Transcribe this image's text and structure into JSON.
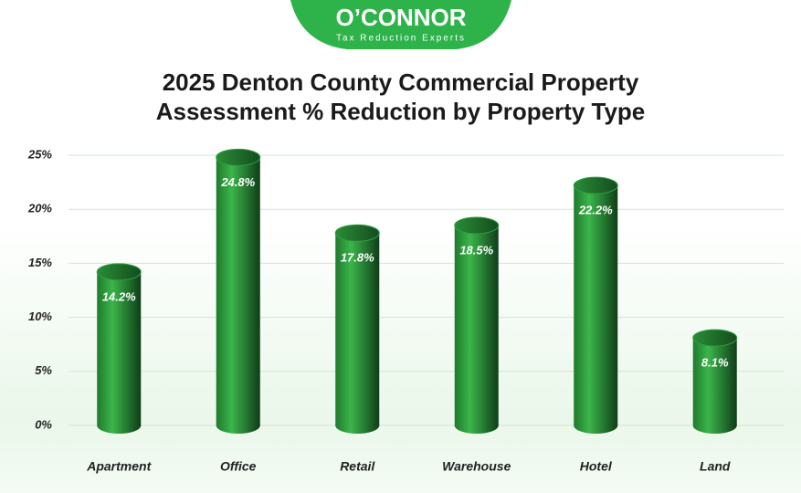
{
  "logo": {
    "name": "O’CONNOR",
    "tagline": "Tax Reduction Experts"
  },
  "chart_data": {
    "type": "bar",
    "title": "2025 Denton County Commercial Property Assessment % Reduction by Property Type",
    "categories": [
      "Apartment",
      "Office",
      "Retail",
      "Warehouse",
      "Hotel",
      "Land"
    ],
    "values": [
      14.2,
      24.8,
      17.8,
      18.5,
      22.2,
      8.1
    ],
    "value_labels": [
      "14.2%",
      "24.8%",
      "17.8%",
      "18.5%",
      "22.2%",
      "8.1%"
    ],
    "color": "#2e9e3e",
    "ylim": [
      0,
      25
    ],
    "yticks": [
      {
        "value": 0,
        "label": "0%"
      },
      {
        "value": 5,
        "label": "5%"
      },
      {
        "value": 10,
        "label": "10%"
      },
      {
        "value": 15,
        "label": "15%"
      },
      {
        "value": 20,
        "label": "20%"
      },
      {
        "value": 25,
        "label": "25%"
      }
    ],
    "grid": true
  }
}
